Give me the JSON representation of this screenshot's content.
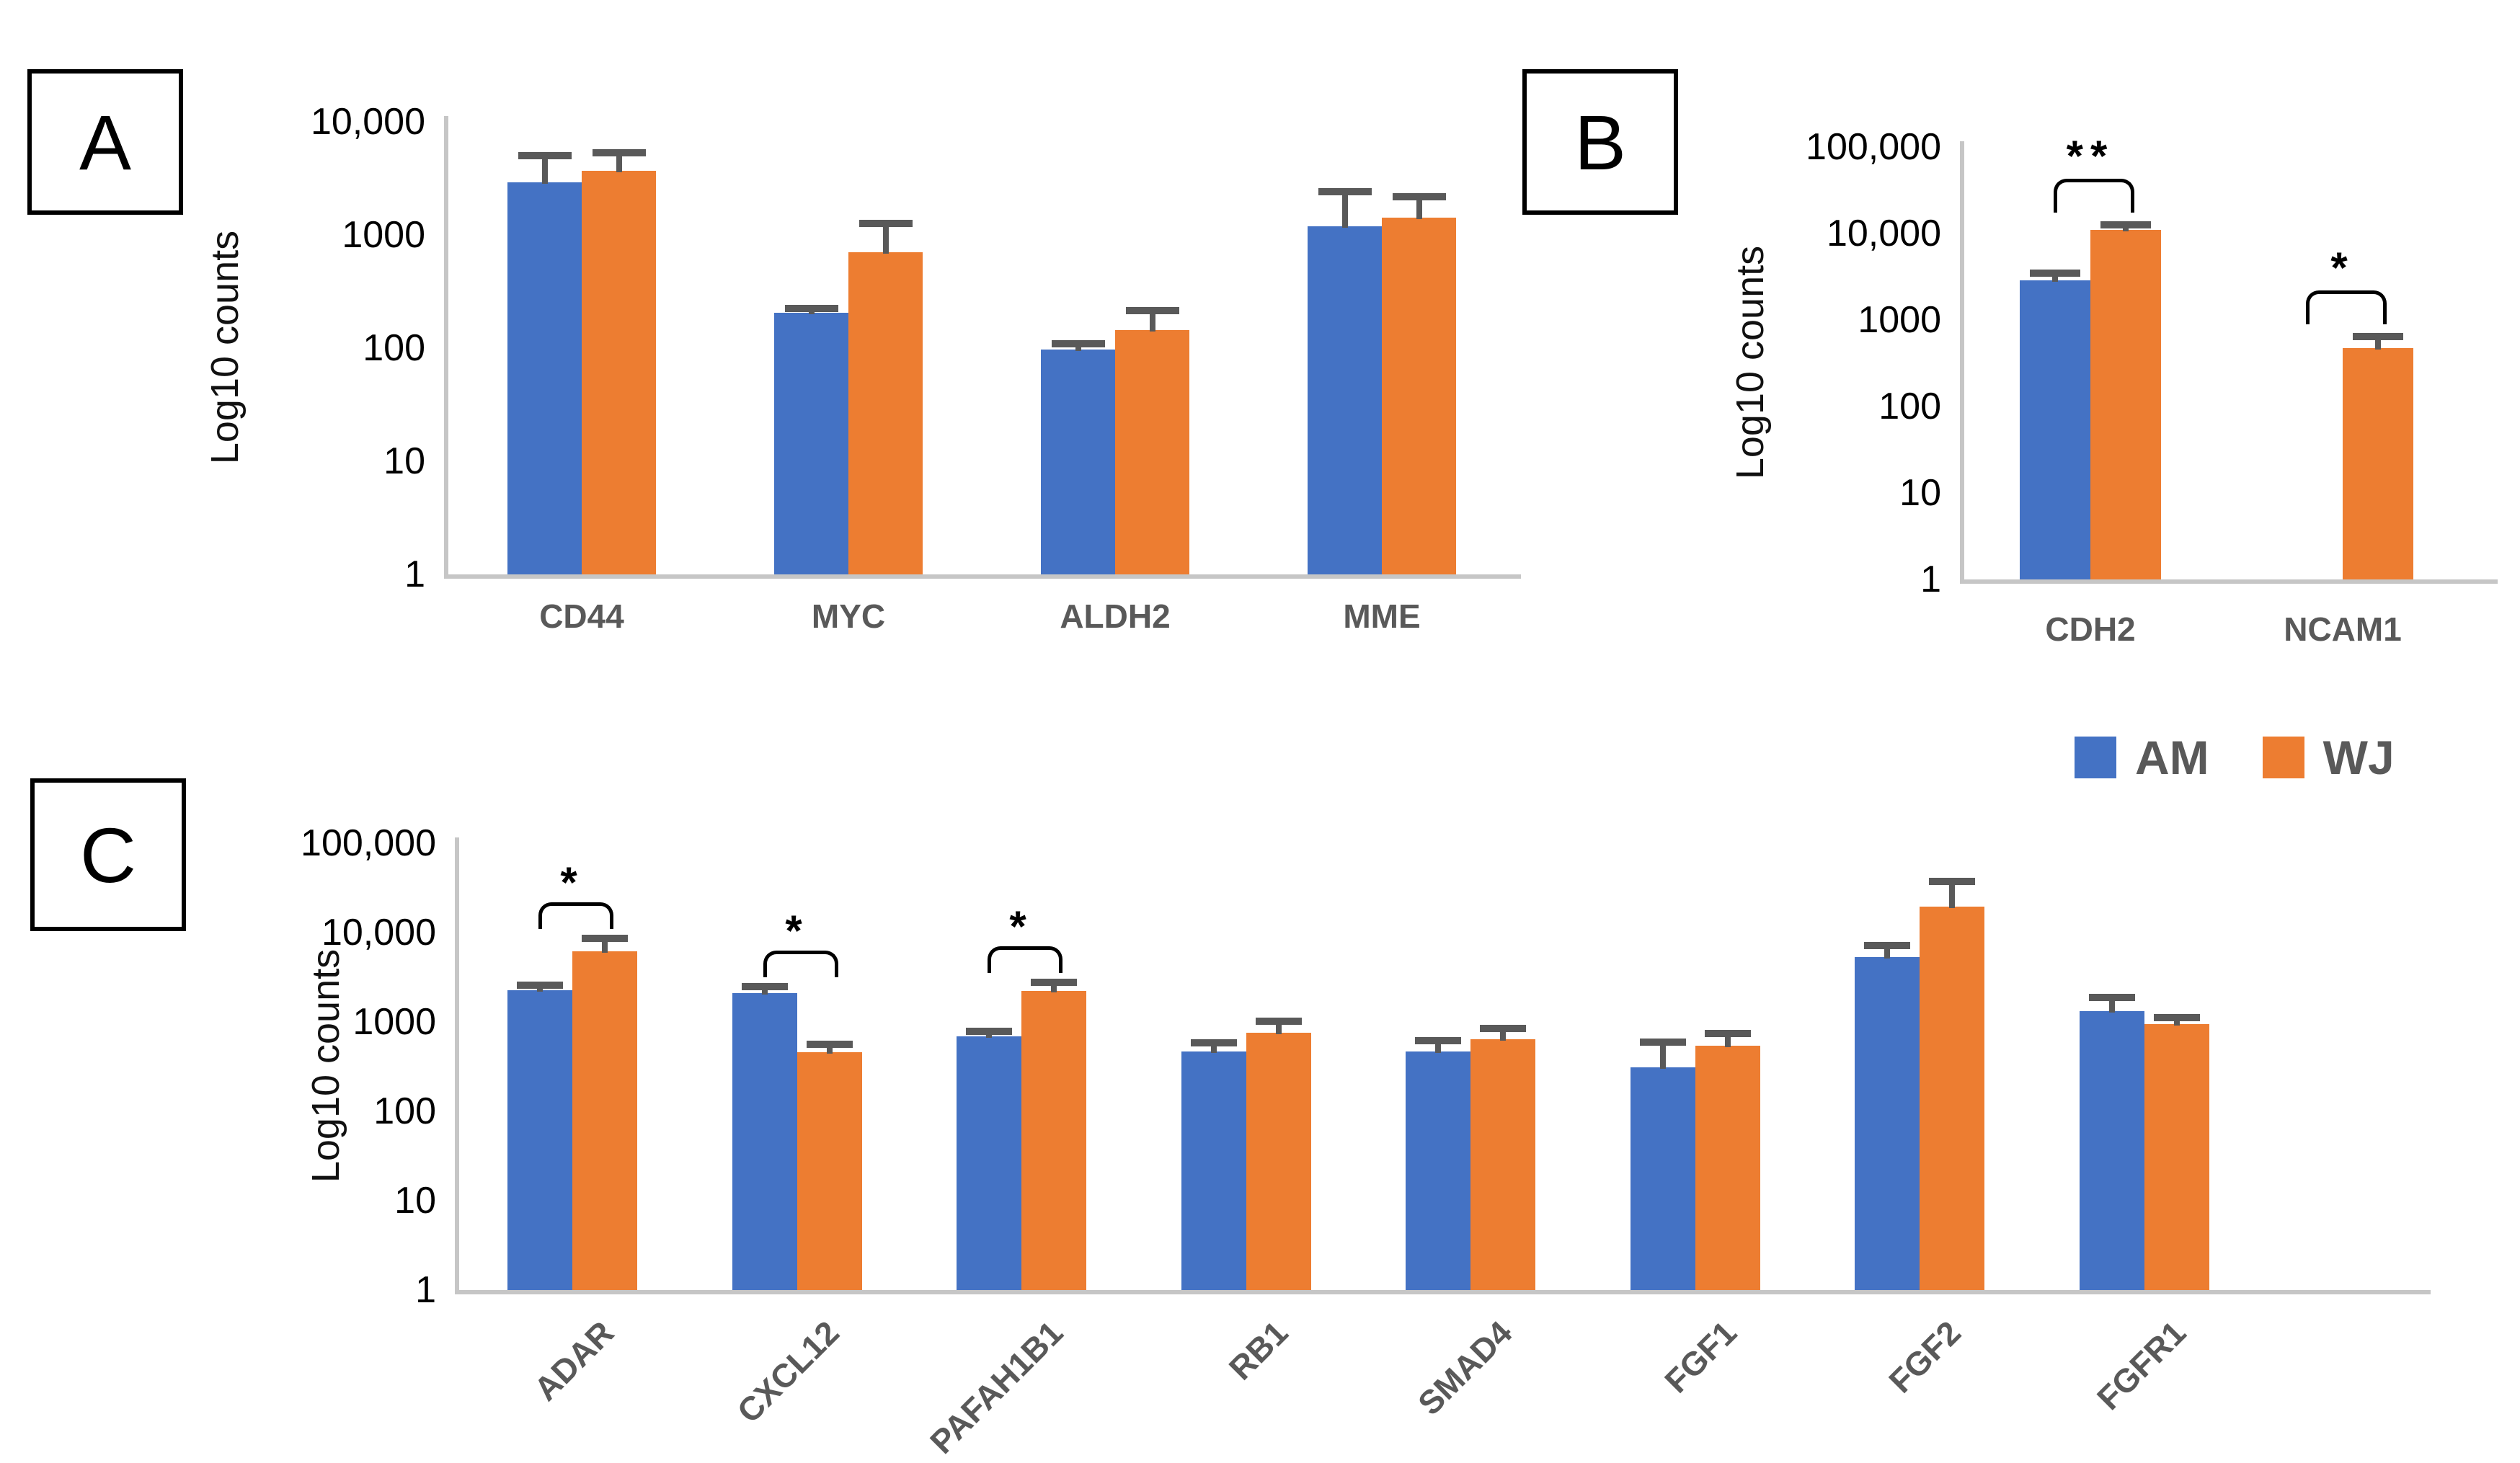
{
  "legend": [
    {
      "label": "AM",
      "color": "#4472C4"
    },
    {
      "label": "WJ",
      "color": "#ED7D31"
    }
  ],
  "colors": {
    "am_bar": "#4472C4",
    "wj_bar": "#ED7D31",
    "axis_line": "#C6C6C6",
    "error_bar": "#595959",
    "category_label": "#595959",
    "tick_label": "#000000",
    "significance": "#000000"
  },
  "chart_data": [
    {
      "id": "A",
      "type": "bar",
      "ylabel": "Log10 counts",
      "yscale": "log10",
      "ylim": [
        1,
        10000
      ],
      "ytick_labels": [
        "10,000",
        "1000",
        "100",
        "10",
        "1"
      ],
      "grid": false,
      "legend_position": "top-right-shared",
      "categories": [
        "CD44",
        "MYC",
        "ALDH2",
        "MME"
      ],
      "series": [
        {
          "name": "AM",
          "color": "#4472C4",
          "values": [
            2900,
            205,
            97,
            1200
          ],
          "error_tops": [
            5000,
            225,
            110,
            2400
          ]
        },
        {
          "name": "WJ",
          "color": "#ED7D31",
          "values": [
            3700,
            700,
            145,
            1420
          ],
          "error_tops": [
            5300,
            1260,
            215,
            2180
          ]
        }
      ],
      "significance": []
    },
    {
      "id": "B",
      "type": "bar",
      "ylabel": "Log10 counts",
      "yscale": "log10",
      "ylim": [
        1,
        100000
      ],
      "ytick_labels": [
        "100,000",
        "10,000",
        "1000",
        "100",
        "10",
        "1"
      ],
      "grid": false,
      "legend_position": "top-right-shared",
      "categories": [
        "CDH2",
        "NCAM1"
      ],
      "series": [
        {
          "name": "AM",
          "color": "#4472C4",
          "values": [
            2900,
            null
          ],
          "error_tops": [
            3500,
            null
          ]
        },
        {
          "name": "WJ",
          "color": "#ED7D31",
          "values": [
            11000,
            470
          ],
          "error_tops": [
            12500,
            640
          ]
        }
      ],
      "significance": [
        {
          "category": "CDH2",
          "marker": "**"
        },
        {
          "category": "NCAM1",
          "marker": "*"
        }
      ]
    },
    {
      "id": "C",
      "type": "bar",
      "ylabel": "Log10 counts",
      "yscale": "log10",
      "ylim": [
        1,
        100000
      ],
      "ytick_labels": [
        "100,000",
        "10,000",
        "1000",
        "100",
        "10",
        "1"
      ],
      "grid": false,
      "legend_position": "top-right-shared",
      "categories": [
        "ADAR",
        "CXCL12",
        "PAFAH1B1",
        "RB1",
        "SMAD4",
        "FGF1",
        "FGF2",
        "FGFR1"
      ],
      "series": [
        {
          "name": "AM",
          "color": "#4472C4",
          "values": [
            2250,
            2100,
            690,
            470,
            465,
            310,
            5300,
            1320
          ],
          "error_tops": [
            2600,
            2500,
            790,
            580,
            620,
            590,
            7150,
            1880
          ]
        },
        {
          "name": "WJ",
          "color": "#ED7D31",
          "values": [
            6200,
            460,
            2230,
            760,
            640,
            540,
            19600,
            940
          ],
          "error_tops": [
            8600,
            560,
            2800,
            1020,
            845,
            740,
            37500,
            1120
          ]
        }
      ],
      "significance": [
        {
          "category": "ADAR",
          "marker": "*"
        },
        {
          "category": "CXCL12",
          "marker": "*"
        },
        {
          "category": "PAFAH1B1",
          "marker": "*"
        }
      ]
    }
  ]
}
